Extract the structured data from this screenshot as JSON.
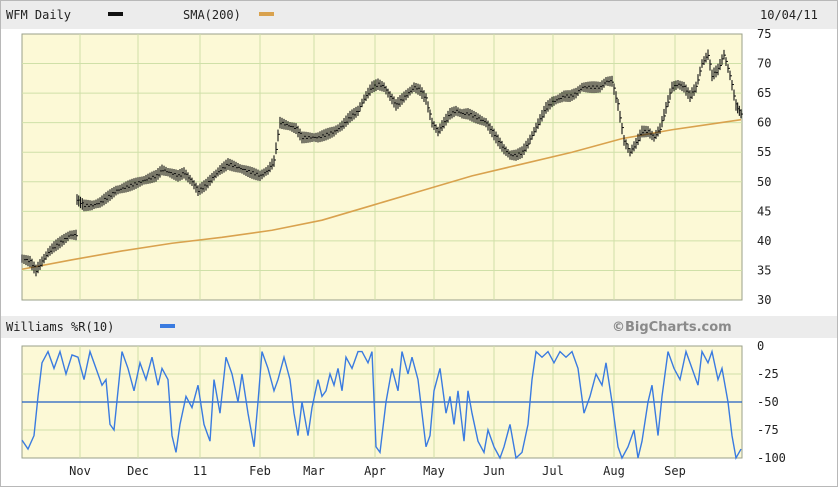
{
  "header": {
    "symbol_label": "WFM Daily",
    "sma_label": "SMA(200)",
    "date": "10/04/11"
  },
  "indicator": {
    "label": "Williams %R(10)",
    "brand": "©BigCharts.com"
  },
  "colors": {
    "plot_bg": "#fcf9d6",
    "grid": "#cfe0a8",
    "header_bg": "#ececec",
    "price": "#111111",
    "sma": "#d9a24e",
    "williams": "#3a7be0",
    "midline": "#1f5fc4"
  },
  "chart_data": [
    {
      "type": "line",
      "title": "WFM Daily",
      "y_axis": {
        "position": "right",
        "range": [
          30,
          75
        ],
        "ticks": [
          30,
          35,
          40,
          45,
          50,
          55,
          60,
          65,
          70,
          75
        ]
      },
      "x_axis": {
        "labels": [
          "Nov",
          "Dec",
          "11",
          "Feb",
          "Mar",
          "Apr",
          "May",
          "Jun",
          "Jul",
          "Aug",
          "Sep"
        ]
      },
      "grid": true,
      "series": [
        {
          "name": "WFM Daily",
          "style": "ohlc-bars",
          "points": [
            [
              0,
              37
            ],
            [
              8,
              36.5
            ],
            [
              14,
              35
            ],
            [
              20,
              36.5
            ],
            [
              26,
              38
            ],
            [
              32,
              39
            ],
            [
              40,
              40
            ],
            [
              48,
              41
            ],
            [
              54,
              41
            ],
            [
              55,
              47
            ],
            [
              62,
              46
            ],
            [
              70,
              46
            ],
            [
              78,
              46.5
            ],
            [
              86,
              47.5
            ],
            [
              94,
              48.5
            ],
            [
              102,
              49
            ],
            [
              110,
              49.5
            ],
            [
              118,
              50
            ],
            [
              126,
              50.5
            ],
            [
              134,
              51
            ],
            [
              140,
              52
            ],
            [
              148,
              51.5
            ],
            [
              156,
              51
            ],
            [
              162,
              51.5
            ],
            [
              170,
              50
            ],
            [
              176,
              48.5
            ],
            [
              184,
              49.5
            ],
            [
              192,
              51
            ],
            [
              198,
              52
            ],
            [
              206,
              53
            ],
            [
              214,
              52.5
            ],
            [
              222,
              52
            ],
            [
              230,
              51.5
            ],
            [
              238,
              51
            ],
            [
              246,
              52
            ],
            [
              252,
              53.5
            ],
            [
              258,
              60
            ],
            [
              266,
              59.5
            ],
            [
              274,
              59
            ],
            [
              280,
              57.5
            ],
            [
              288,
              57.5
            ],
            [
              296,
              57.5
            ],
            [
              304,
              58
            ],
            [
              312,
              58.5
            ],
            [
              320,
              59.5
            ],
            [
              328,
              61
            ],
            [
              336,
              62
            ],
            [
              342,
              64
            ],
            [
              350,
              66
            ],
            [
              356,
              66.5
            ],
            [
              362,
              66
            ],
            [
              368,
              64.5
            ],
            [
              374,
              63
            ],
            [
              380,
              64
            ],
            [
              386,
              65
            ],
            [
              392,
              66
            ],
            [
              398,
              65.5
            ],
            [
              404,
              64
            ],
            [
              410,
              60
            ],
            [
              416,
              58.5
            ],
            [
              422,
              60
            ],
            [
              428,
              61.5
            ],
            [
              434,
              62
            ],
            [
              440,
              61.5
            ],
            [
              446,
              61.5
            ],
            [
              452,
              61
            ],
            [
              458,
              60.5
            ],
            [
              464,
              60
            ],
            [
              470,
              58.5
            ],
            [
              476,
              57
            ],
            [
              482,
              55.5
            ],
            [
              488,
              54.5
            ],
            [
              494,
              54.5
            ],
            [
              500,
              55
            ],
            [
              506,
              56.5
            ],
            [
              512,
              58.5
            ],
            [
              518,
              60.5
            ],
            [
              524,
              62.5
            ],
            [
              530,
              63.5
            ],
            [
              536,
              64
            ],
            [
              542,
              64.5
            ],
            [
              548,
              64.5
            ],
            [
              554,
              65
            ],
            [
              560,
              66
            ],
            [
              566,
              66
            ],
            [
              572,
              66
            ],
            [
              578,
              66
            ],
            [
              584,
              67
            ],
            [
              590,
              67
            ],
            [
              596,
              63
            ],
            [
              602,
              57
            ],
            [
              608,
              55
            ],
            [
              614,
              56.5
            ],
            [
              620,
              58.5
            ],
            [
              626,
              58.5
            ],
            [
              632,
              57.5
            ],
            [
              638,
              59
            ],
            [
              644,
              62.5
            ],
            [
              650,
              66
            ],
            [
              656,
              66.5
            ],
            [
              662,
              66
            ],
            [
              668,
              64.5
            ],
            [
              674,
              66
            ],
            [
              680,
              70
            ],
            [
              686,
              71.5
            ],
            [
              690,
              68
            ],
            [
              696,
              69
            ],
            [
              702,
              71.5
            ],
            [
              708,
              68
            ],
            [
              714,
              63
            ],
            [
              719,
              61.5
            ]
          ]
        },
        {
          "name": "SMA(200)",
          "points": [
            [
              0,
              35.2
            ],
            [
              50,
              36.8
            ],
            [
              100,
              38.3
            ],
            [
              150,
              39.6
            ],
            [
              200,
              40.6
            ],
            [
              250,
              41.8
            ],
            [
              300,
              43.5
            ],
            [
              350,
              46
            ],
            [
              400,
              48.5
            ],
            [
              450,
              51
            ],
            [
              500,
              53
            ],
            [
              550,
              55
            ],
            [
              600,
              57.3
            ],
            [
              650,
              58.8
            ],
            [
              719,
              60.5
            ]
          ]
        }
      ]
    },
    {
      "type": "line",
      "title": "Williams %R(10)",
      "y_axis": {
        "position": "right",
        "range": [
          -100,
          0
        ],
        "ticks": [
          0,
          -25,
          -50,
          -75,
          -100
        ]
      },
      "x_axis": {
        "labels": [
          "Nov",
          "Dec",
          "11",
          "Feb",
          "Mar",
          "Apr",
          "May",
          "Jun",
          "Jul",
          "Aug",
          "Sep"
        ]
      },
      "grid": true,
      "reference_line": -50,
      "series": [
        {
          "name": "Williams %R(10)",
          "points": [
            [
              0,
              -84
            ],
            [
              6,
              -92
            ],
            [
              12,
              -80
            ],
            [
              16,
              -45
            ],
            [
              20,
              -15
            ],
            [
              26,
              -5
            ],
            [
              32,
              -20
            ],
            [
              38,
              -5
            ],
            [
              44,
              -25
            ],
            [
              50,
              -8
            ],
            [
              56,
              -10
            ],
            [
              62,
              -30
            ],
            [
              68,
              -5
            ],
            [
              74,
              -20
            ],
            [
              80,
              -35
            ],
            [
              84,
              -30
            ],
            [
              88,
              -70
            ],
            [
              92,
              -75
            ],
            [
              96,
              -40
            ],
            [
              100,
              -5
            ],
            [
              106,
              -20
            ],
            [
              112,
              -40
            ],
            [
              118,
              -15
            ],
            [
              124,
              -30
            ],
            [
              130,
              -10
            ],
            [
              136,
              -35
            ],
            [
              140,
              -20
            ],
            [
              146,
              -30
            ],
            [
              150,
              -80
            ],
            [
              154,
              -95
            ],
            [
              158,
              -70
            ],
            [
              164,
              -45
            ],
            [
              170,
              -55
            ],
            [
              176,
              -35
            ],
            [
              182,
              -70
            ],
            [
              188,
              -85
            ],
            [
              192,
              -30
            ],
            [
              198,
              -60
            ],
            [
              204,
              -10
            ],
            [
              210,
              -25
            ],
            [
              216,
              -50
            ],
            [
              220,
              -25
            ],
            [
              226,
              -60
            ],
            [
              232,
              -90
            ],
            [
              236,
              -50
            ],
            [
              240,
              -5
            ],
            [
              246,
              -20
            ],
            [
              252,
              -40
            ],
            [
              256,
              -30
            ],
            [
              262,
              -10
            ],
            [
              268,
              -30
            ],
            [
              272,
              -60
            ],
            [
              276,
              -80
            ],
            [
              280,
              -50
            ],
            [
              286,
              -80
            ],
            [
              290,
              -55
            ],
            [
              296,
              -30
            ],
            [
              300,
              -45
            ],
            [
              304,
              -40
            ],
            [
              308,
              -25
            ],
            [
              312,
              -35
            ],
            [
              316,
              -20
            ],
            [
              320,
              -40
            ],
            [
              324,
              -10
            ],
            [
              330,
              -20
            ],
            [
              336,
              -5
            ],
            [
              340,
              -5
            ],
            [
              346,
              -15
            ],
            [
              350,
              -5
            ],
            [
              354,
              -90
            ],
            [
              358,
              -95
            ],
            [
              364,
              -50
            ],
            [
              370,
              -20
            ],
            [
              376,
              -40
            ],
            [
              380,
              -5
            ],
            [
              386,
              -25
            ],
            [
              390,
              -10
            ],
            [
              396,
              -30
            ],
            [
              400,
              -60
            ],
            [
              404,
              -90
            ],
            [
              408,
              -80
            ],
            [
              412,
              -40
            ],
            [
              418,
              -20
            ],
            [
              424,
              -60
            ],
            [
              428,
              -45
            ],
            [
              432,
              -70
            ],
            [
              436,
              -40
            ],
            [
              442,
              -85
            ],
            [
              446,
              -40
            ],
            [
              450,
              -60
            ],
            [
              456,
              -85
            ],
            [
              462,
              -95
            ],
            [
              466,
              -75
            ],
            [
              472,
              -90
            ],
            [
              478,
              -100
            ],
            [
              482,
              -90
            ],
            [
              488,
              -70
            ],
            [
              494,
              -100
            ],
            [
              500,
              -95
            ],
            [
              506,
              -70
            ],
            [
              510,
              -30
            ],
            [
              514,
              -5
            ],
            [
              520,
              -10
            ],
            [
              526,
              -5
            ],
            [
              532,
              -15
            ],
            [
              538,
              -5
            ],
            [
              544,
              -10
            ],
            [
              550,
              -5
            ],
            [
              556,
              -20
            ],
            [
              562,
              -60
            ],
            [
              568,
              -45
            ],
            [
              574,
              -25
            ],
            [
              580,
              -35
            ],
            [
              584,
              -15
            ],
            [
              590,
              -50
            ],
            [
              596,
              -90
            ],
            [
              600,
              -100
            ],
            [
              606,
              -90
            ],
            [
              612,
              -75
            ],
            [
              616,
              -100
            ],
            [
              620,
              -85
            ],
            [
              626,
              -50
            ],
            [
              630,
              -35
            ],
            [
              636,
              -80
            ],
            [
              640,
              -45
            ],
            [
              646,
              -5
            ],
            [
              652,
              -20
            ],
            [
              658,
              -30
            ],
            [
              664,
              -5
            ],
            [
              670,
              -20
            ],
            [
              676,
              -35
            ],
            [
              680,
              -5
            ],
            [
              686,
              -15
            ],
            [
              690,
              -5
            ],
            [
              696,
              -30
            ],
            [
              700,
              -20
            ],
            [
              706,
              -50
            ],
            [
              710,
              -80
            ],
            [
              714,
              -100
            ],
            [
              719,
              -92
            ]
          ]
        }
      ]
    }
  ]
}
